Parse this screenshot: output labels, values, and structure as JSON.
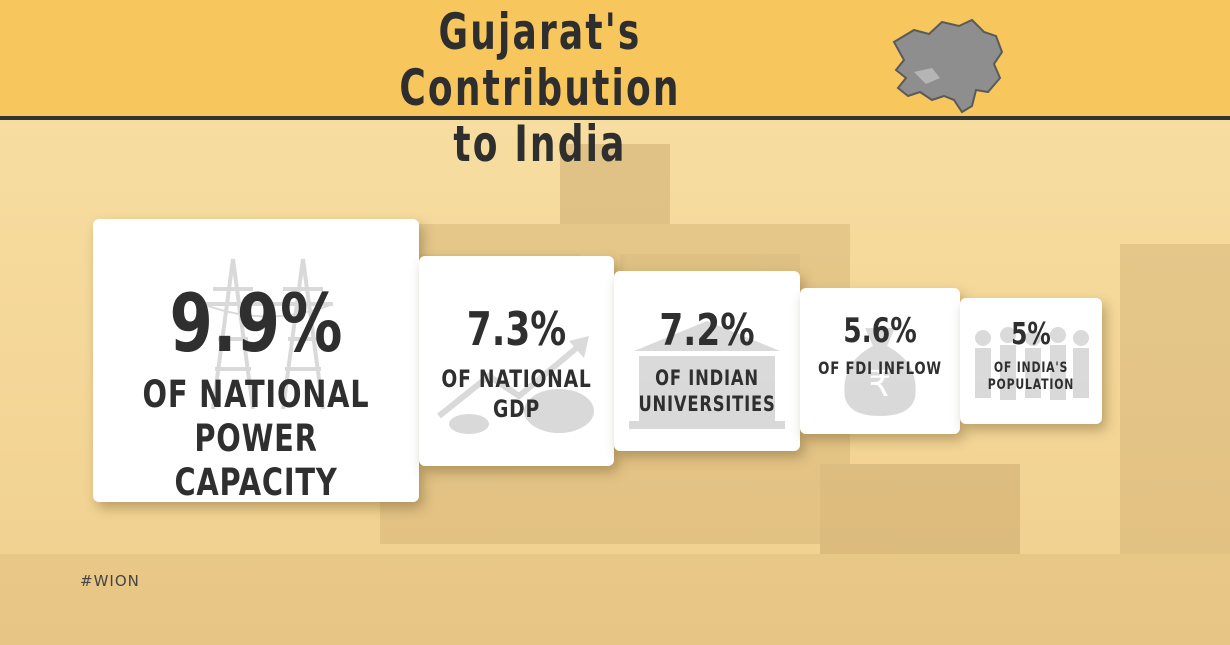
{
  "header": {
    "title_line1": "Gujarat's Contribution",
    "title_line2": "to India",
    "map_icon": "gujarat-map-icon"
  },
  "stats": [
    {
      "value": "9.9%",
      "label": "OF NATIONAL POWER CAPACITY",
      "icon": "power-tower-icon"
    },
    {
      "value": "7.3%",
      "label": "OF NATIONAL GDP",
      "icon": "growth-chart-icon"
    },
    {
      "value": "7.2%",
      "label": "OF INDIAN UNIVERSITIES",
      "icon": "university-building-icon"
    },
    {
      "value": "5.6%",
      "label": "OF FDI INFLOW",
      "icon": "rupee-bag-icon"
    },
    {
      "value": "5%",
      "label": "OF INDIA'S POPULATION",
      "icon": "crowd-icon"
    }
  ],
  "footer": {
    "hashtag": "#WION"
  },
  "colors": {
    "header_bg": "#f7c65c",
    "background": "#f5dc9f",
    "text": "#2f2f2f",
    "card": "#ffffff"
  }
}
